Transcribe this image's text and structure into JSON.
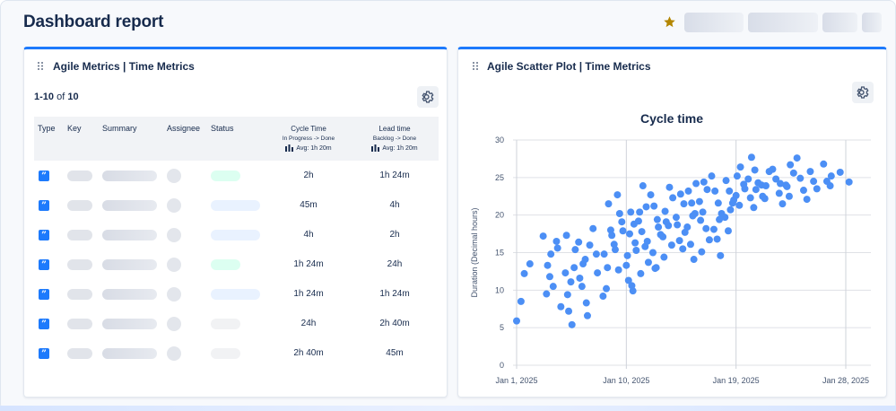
{
  "header": {
    "title": "Dashboard report",
    "star_color": "#b38600"
  },
  "metrics_panel": {
    "title": "Agile Metrics | Time Metrics",
    "count_prefix": "1-10",
    "count_of": "of",
    "count_total": "10",
    "columns": {
      "type": "Type",
      "key": "Key",
      "summary": "Summary",
      "assignee": "Assignee",
      "status": "Status",
      "cycle_time": "Cycle Time",
      "cycle_sub": "In Progress -> Done",
      "cycle_avg": "Avg: 1h 20m",
      "lead_time": "Lead time",
      "lead_sub": "Backlog -> Done",
      "lead_avg": "Avg: 1h 20m"
    },
    "rows": [
      {
        "type_icon": "quote-icon",
        "status_color": "#dcfff1",
        "status_width": 33,
        "cycle": "2h",
        "lead": "1h 24m"
      },
      {
        "type_icon": "quote-icon",
        "status_color": "#e9f2ff",
        "status_width": 55,
        "cycle": "45m",
        "lead": "4h"
      },
      {
        "type_icon": "quote-icon",
        "status_color": "#e9f2ff",
        "status_width": 55,
        "cycle": "4h",
        "lead": "2h"
      },
      {
        "type_icon": "quote-icon",
        "status_color": "#dcfff1",
        "status_width": 33,
        "cycle": "1h 24m",
        "lead": "24h"
      },
      {
        "type_icon": "quote-icon",
        "status_color": "#e9f2ff",
        "status_width": 55,
        "cycle": "1h 24m",
        "lead": "1h 24m"
      },
      {
        "type_icon": "quote-icon",
        "status_color": "#f1f2f4",
        "status_width": 33,
        "cycle": "24h",
        "lead": "2h 40m"
      },
      {
        "type_icon": "quote-icon",
        "status_color": "#f1f2f4",
        "status_width": 33,
        "cycle": "2h 40m",
        "lead": "45m"
      }
    ]
  },
  "scatter_panel": {
    "title": "Agile Scatter Plot | Time Metrics"
  },
  "chart_data": {
    "type": "scatter",
    "title": "Cycle time",
    "xlabel": "",
    "ylabel": "Duration (Decimal hours)",
    "x_ticks": [
      "Jan 1, 2025",
      "Jan 10, 2025",
      "Jan 19, 2025",
      "Jan 28, 2025"
    ],
    "x_range": [
      "Jan 1, 2025",
      "Jan 31, 2025"
    ],
    "ylim": [
      0,
      30
    ],
    "y_ticks": [
      0,
      5,
      10,
      15,
      20,
      25,
      30
    ],
    "grid": true,
    "point_color": "#4c8ff5",
    "points": [
      [
        "Jan 1, 2025",
        5.9
      ],
      [
        "Jan 1, 2025",
        12.2
      ],
      [
        "Jan 1, 2025",
        8.5
      ],
      [
        "Jan 2, 2025",
        13.5
      ],
      [
        "Jan 3, 2025",
        11.8
      ],
      [
        "Jan 3, 2025",
        9.5
      ],
      [
        "Jan 3, 2025",
        17.2
      ],
      [
        "Jan 3, 2025",
        14.8
      ],
      [
        "Jan 3, 2025",
        13.3
      ],
      [
        "Jan 4, 2025",
        16.5
      ],
      [
        "Jan 4, 2025",
        10.5
      ],
      [
        "Jan 4, 2025",
        7.8
      ],
      [
        "Jan 4, 2025",
        15.6
      ],
      [
        "Jan 5, 2025",
        17.3
      ],
      [
        "Jan 5, 2025",
        13.0
      ],
      [
        "Jan 5, 2025",
        11.1
      ],
      [
        "Jan 5, 2025",
        9.4
      ],
      [
        "Jan 5, 2025",
        15.4
      ],
      [
        "Jan 5, 2025",
        5.4
      ],
      [
        "Jan 5, 2025",
        7.2
      ],
      [
        "Jan 5, 2025",
        12.3
      ],
      [
        "Jan 6, 2025",
        14.1
      ],
      [
        "Jan 6, 2025",
        10.5
      ],
      [
        "Jan 6, 2025",
        16.4
      ],
      [
        "Jan 6, 2025",
        8.3
      ],
      [
        "Jan 6, 2025",
        13.5
      ],
      [
        "Jan 6, 2025",
        11.6
      ],
      [
        "Jan 6, 2025",
        6.6
      ],
      [
        "Jan 7, 2025",
        14.8
      ],
      [
        "Jan 7, 2025",
        18.2
      ],
      [
        "Jan 7, 2025",
        16.0
      ],
      [
        "Jan 7, 2025",
        12.3
      ],
      [
        "Jan 8, 2025",
        10.2
      ],
      [
        "Jan 8, 2025",
        9.2
      ],
      [
        "Jan 8, 2025",
        18.0
      ],
      [
        "Jan 8, 2025",
        13.0
      ],
      [
        "Jan 8, 2025",
        14.8
      ],
      [
        "Jan 8, 2025",
        17.3
      ],
      [
        "Jan 8, 2025",
        21.5
      ],
      [
        "Jan 9, 2025",
        22.7
      ],
      [
        "Jan 9, 2025",
        16.1
      ],
      [
        "Jan 9, 2025",
        19.1
      ],
      [
        "Jan 9, 2025",
        12.7
      ],
      [
        "Jan 9, 2025",
        15.4
      ],
      [
        "Jan 9, 2025",
        17.9
      ],
      [
        "Jan 9, 2025",
        20.2
      ],
      [
        "Jan 10, 2025",
        11.3
      ],
      [
        "Jan 10, 2025",
        15.3
      ],
      [
        "Jan 10, 2025",
        9.9
      ],
      [
        "Jan 10, 2025",
        17.5
      ],
      [
        "Jan 10, 2025",
        13.3
      ],
      [
        "Jan 10, 2025",
        18.8
      ],
      [
        "Jan 10, 2025",
        20.4
      ],
      [
        "Jan 10, 2025",
        14.6
      ],
      [
        "Jan 10, 2025",
        16.3
      ],
      [
        "Jan 10, 2025",
        10.6
      ],
      [
        "Jan 11, 2025",
        12.2
      ],
      [
        "Jan 11, 2025",
        13.7
      ],
      [
        "Jan 11, 2025",
        15.8
      ],
      [
        "Jan 11, 2025",
        17.8
      ],
      [
        "Jan 11, 2025",
        19.2
      ],
      [
        "Jan 11, 2025",
        21.1
      ],
      [
        "Jan 11, 2025",
        23.9
      ],
      [
        "Jan 11, 2025",
        20.4
      ],
      [
        "Jan 11, 2025",
        16.5
      ],
      [
        "Jan 12, 2025",
        13.0
      ],
      [
        "Jan 12, 2025",
        15.0
      ],
      [
        "Jan 12, 2025",
        17.4
      ],
      [
        "Jan 12, 2025",
        19.4
      ],
      [
        "Jan 12, 2025",
        21.2
      ],
      [
        "Jan 12, 2025",
        22.7
      ],
      [
        "Jan 12, 2025",
        18.4
      ],
      [
        "Jan 12, 2025",
        12.9
      ],
      [
        "Jan 13, 2025",
        14.4
      ],
      [
        "Jan 13, 2025",
        16.0
      ],
      [
        "Jan 13, 2025",
        18.6
      ],
      [
        "Jan 13, 2025",
        20.5
      ],
      [
        "Jan 13, 2025",
        22.3
      ],
      [
        "Jan 13, 2025",
        23.7
      ],
      [
        "Jan 13, 2025",
        19.1
      ],
      [
        "Jan 13, 2025",
        17.1
      ],
      [
        "Jan 14, 2025",
        15.5
      ],
      [
        "Jan 14, 2025",
        16.6
      ],
      [
        "Jan 14, 2025",
        19.7
      ],
      [
        "Jan 14, 2025",
        21.5
      ],
      [
        "Jan 14, 2025",
        22.8
      ],
      [
        "Jan 14, 2025",
        18.7
      ],
      [
        "Jan 14, 2025",
        17.7
      ],
      [
        "Jan 15, 2025",
        14.1
      ],
      [
        "Jan 15, 2025",
        16.1
      ],
      [
        "Jan 15, 2025",
        18.4
      ],
      [
        "Jan 15, 2025",
        20.2
      ],
      [
        "Jan 15, 2025",
        21.6
      ],
      [
        "Jan 15, 2025",
        23.2
      ],
      [
        "Jan 15, 2025",
        24.2
      ],
      [
        "Jan 15, 2025",
        19.9
      ],
      [
        "Jan 16, 2025",
        15.1
      ],
      [
        "Jan 16, 2025",
        16.7
      ],
      [
        "Jan 16, 2025",
        18.2
      ],
      [
        "Jan 16, 2025",
        20.4
      ],
      [
        "Jan 16, 2025",
        21.8
      ],
      [
        "Jan 16, 2025",
        23.4
      ],
      [
        "Jan 16, 2025",
        24.4
      ],
      [
        "Jan 16, 2025",
        19.3
      ],
      [
        "Jan 17, 2025",
        14.6
      ],
      [
        "Jan 17, 2025",
        16.8
      ],
      [
        "Jan 17, 2025",
        18.1
      ],
      [
        "Jan 17, 2025",
        20.2
      ],
      [
        "Jan 17, 2025",
        21.6
      ],
      [
        "Jan 17, 2025",
        23.2
      ],
      [
        "Jan 17, 2025",
        25.2
      ],
      [
        "Jan 17, 2025",
        19.4
      ],
      [
        "Jan 18, 2025",
        17.9
      ],
      [
        "Jan 18, 2025",
        19.7
      ],
      [
        "Jan 18, 2025",
        21.6
      ],
      [
        "Jan 18, 2025",
        23.2
      ],
      [
        "Jan 18, 2025",
        24.6
      ],
      [
        "Jan 18, 2025",
        22.0
      ],
      [
        "Jan 18, 2025",
        20.7
      ],
      [
        "Jan 19, 2025",
        21.3
      ],
      [
        "Jan 19, 2025",
        22.6
      ],
      [
        "Jan 19, 2025",
        24.1
      ],
      [
        "Jan 19, 2025",
        26.4
      ],
      [
        "Jan 19, 2025",
        25.2
      ],
      [
        "Jan 19, 2025",
        23.5
      ],
      [
        "Jan 20, 2025",
        21.0
      ],
      [
        "Jan 20, 2025",
        22.3
      ],
      [
        "Jan 20, 2025",
        24.3
      ],
      [
        "Jan 20, 2025",
        26.0
      ],
      [
        "Jan 20, 2025",
        27.7
      ],
      [
        "Jan 20, 2025",
        24.8
      ],
      [
        "Jan 20, 2025",
        23.4
      ],
      [
        "Jan 21, 2025",
        22.2
      ],
      [
        "Jan 21, 2025",
        24.0
      ],
      [
        "Jan 21, 2025",
        25.8
      ],
      [
        "Jan 21, 2025",
        23.9
      ],
      [
        "Jan 21, 2025",
        22.5
      ],
      [
        "Jan 22, 2025",
        21.5
      ],
      [
        "Jan 22, 2025",
        22.9
      ],
      [
        "Jan 22, 2025",
        24.8
      ],
      [
        "Jan 22, 2025",
        26.1
      ],
      [
        "Jan 22, 2025",
        24.2
      ],
      [
        "Jan 23, 2025",
        22.5
      ],
      [
        "Jan 23, 2025",
        24.0
      ],
      [
        "Jan 23, 2025",
        25.6
      ],
      [
        "Jan 23, 2025",
        26.7
      ],
      [
        "Jan 23, 2025",
        23.8
      ],
      [
        "Jan 24, 2025",
        22.1
      ],
      [
        "Jan 24, 2025",
        23.3
      ],
      [
        "Jan 24, 2025",
        24.9
      ],
      [
        "Jan 24, 2025",
        27.6
      ],
      [
        "Jan 25, 2025",
        23.5
      ],
      [
        "Jan 25, 2025",
        24.5
      ],
      [
        "Jan 25, 2025",
        25.8
      ],
      [
        "Jan 26, 2025",
        23.9
      ],
      [
        "Jan 26, 2025",
        24.5
      ],
      [
        "Jan 26, 2025",
        26.8
      ],
      [
        "Jan 26, 2025",
        25.2
      ],
      [
        "Jan 27, 2025",
        25.7
      ],
      [
        "Jan 28, 2025",
        24.4
      ]
    ]
  }
}
